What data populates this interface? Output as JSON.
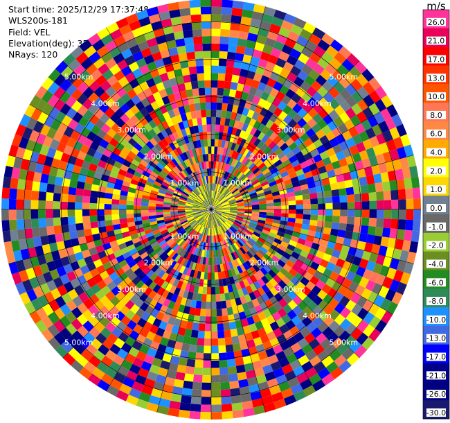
{
  "header": {
    "start_time": "Start time: 2025/12/29 17:37:48",
    "site": "WLS200s-181",
    "field": "Field: VEL",
    "elevation": "Elevation(deg): 35.00",
    "nrays": "NRays: 120"
  },
  "colorbar": {
    "unit": "m/s",
    "ticks": [
      "26.0",
      "21.0",
      "17.0",
      "13.0",
      "10.0",
      "8.0",
      "6.0",
      "4.0",
      "2.0",
      "1.0",
      "0.0",
      "-1.0",
      "-2.0",
      "-4.0",
      "-6.0",
      "-8.0",
      "-10.0",
      "-13.0",
      "-17.0",
      "-21.0",
      "-26.0",
      "-30.0"
    ],
    "colors": [
      "#ff3399",
      "#e8005a",
      "#ff0000",
      "#ff3300",
      "#ff5500",
      "#ff7755",
      "#ff8844",
      "#ffaa00",
      "#ffff00",
      "#ffd700",
      "#708090",
      "#696969",
      "#9acd32",
      "#6b8e23",
      "#228b22",
      "#2e8b57",
      "#1e90ff",
      "#4169e1",
      "#0000ff",
      "#00008b",
      "#000080",
      "#191970"
    ]
  },
  "chart_data": {
    "type": "ppi",
    "field": "VEL",
    "unit": "m/s",
    "nrays": 120,
    "range_rings_km": [
      1.0,
      2.0,
      3.0,
      4.0,
      5.0
    ],
    "ring_labels": [
      "1.00km",
      "2.00km",
      "3.00km",
      "4.00km",
      "5.00km"
    ],
    "grid": true
  }
}
